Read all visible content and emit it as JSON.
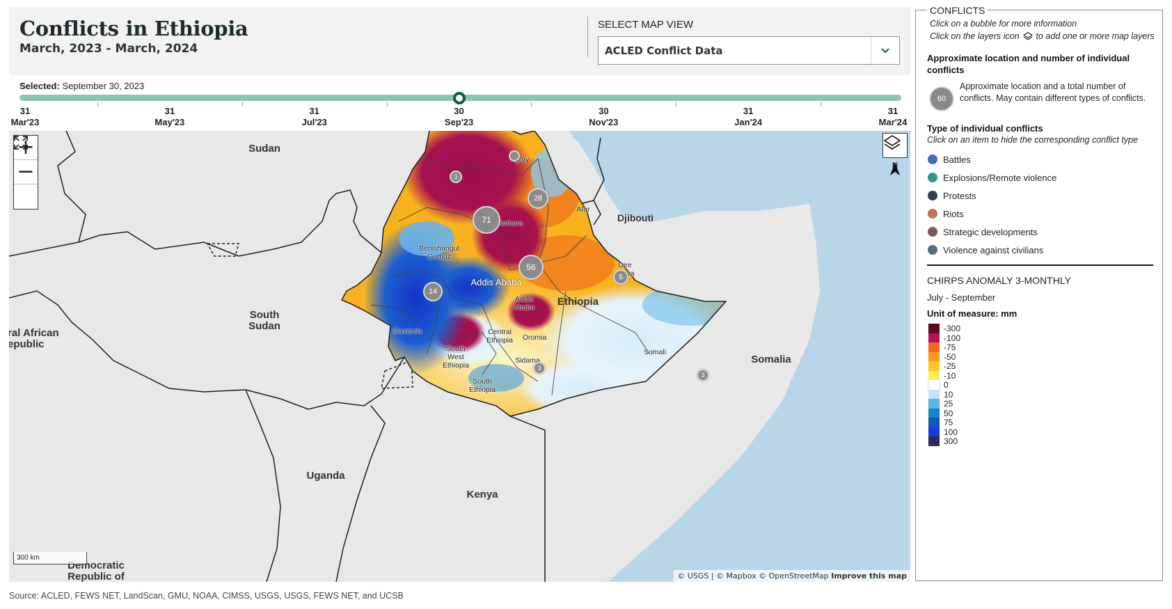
{
  "header": {
    "title": "Conflicts in Ethiopia",
    "subtitle": "March, 2023 - March, 2024",
    "map_view_label": "SELECT MAP VIEW",
    "map_view_value": "ACLED Conflict Data"
  },
  "timeline": {
    "selected_label": "Selected:",
    "selected_value": "September 30, 2023",
    "position_fraction": 0.5,
    "ticks": [
      {
        "day": "31",
        "month": "Mar'23"
      },
      {
        "day": "31",
        "month": "May'23"
      },
      {
        "day": "31",
        "month": "Jul'23"
      },
      {
        "day": "30",
        "month": "Sep'23"
      },
      {
        "day": "30",
        "month": "Nov'23"
      },
      {
        "day": "31",
        "month": "Jan'24"
      },
      {
        "day": "31",
        "month": "Mar'24"
      }
    ]
  },
  "map": {
    "countries": [
      "Sudan",
      "South\nSudan",
      "ral African\nepublic",
      "Uganda",
      "Kenya",
      "Democratic\nRepublic of",
      "Somalia",
      "Djibouti",
      "Ethiopia"
    ],
    "regions": [
      "Tigray",
      "Amhara",
      "Afar",
      "Benishangul\nGumuz",
      "Addis Ababa",
      "Addis\nAbaba",
      "Dire\nDawa",
      "Gambela",
      "Central\nEthiopia",
      "Oromia",
      "South\nWest\nEthiopia",
      "Sidama",
      "South\nEthiopia",
      "Somali"
    ],
    "bubbles": [
      "71",
      "56",
      "28",
      "14",
      "5",
      "3",
      "3",
      "3",
      ""
    ],
    "scale_label": "300 km",
    "attribution_prefix": "© USGS | © Mapbox © OpenStreetMap",
    "attribution_link": "Improve this map",
    "controls": {
      "zoom_in": "+",
      "zoom_out": "−",
      "north_label": "N"
    }
  },
  "source": "Source: ACLED, FEWS NET, LandScan, GMU, NOAA, CIMSS, USGS, USGS, FEWS NET, and UCSB",
  "legend": {
    "title": "CONFLICTS",
    "hint1": "Click on a bubble for more information",
    "hint2_pre": "Click on the layers icon",
    "hint2_post": "to add one or more map layers",
    "approx_title": "Approximate location and number of individual conflicts",
    "bubble_example": "60",
    "bubble_text": "Approximate location and a total number of conflicts. May contain different types of conflicts.",
    "types_title": "Type of individual conflicts",
    "types_hint": "Click on an item to hide the corresponding conflict type",
    "conflict_types": [
      {
        "label": "Battles",
        "color": "#3a6fc4"
      },
      {
        "label": "Explosions/Remote violence",
        "color": "#2a9a86"
      },
      {
        "label": "Protests",
        "color": "#343e48"
      },
      {
        "label": "Riots",
        "color": "#c8705a"
      },
      {
        "label": "Strategic developments",
        "color": "#7a5a5a"
      },
      {
        "label": "Violence against civilians",
        "color": "#54707e"
      }
    ],
    "chirps_title": "CHIRPS ANOMALY 3-MONTHLY",
    "chirps_season": "July - September",
    "unit_label": "Unit of measure: mm",
    "color_scale": [
      {
        "label": "-300",
        "color": "#5c0a1e"
      },
      {
        "label": "-100",
        "color": "#b5125a"
      },
      {
        "label": "-75",
        "color": "#f46a1c"
      },
      {
        "label": "-50",
        "color": "#f79a1a"
      },
      {
        "label": "-25",
        "color": "#f9c826"
      },
      {
        "label": "-10",
        "color": "#f7ee5a"
      },
      {
        "label": "0",
        "color": "#ffffff"
      },
      {
        "label": "10",
        "color": "#c6e4f7"
      },
      {
        "label": "25",
        "color": "#5ab4e8"
      },
      {
        "label": "50",
        "color": "#1584cc"
      },
      {
        "label": "75",
        "color": "#0b5bb5"
      },
      {
        "label": "100",
        "color": "#1b3ae0"
      },
      {
        "label": "300",
        "color": "#2a2c52"
      }
    ]
  }
}
